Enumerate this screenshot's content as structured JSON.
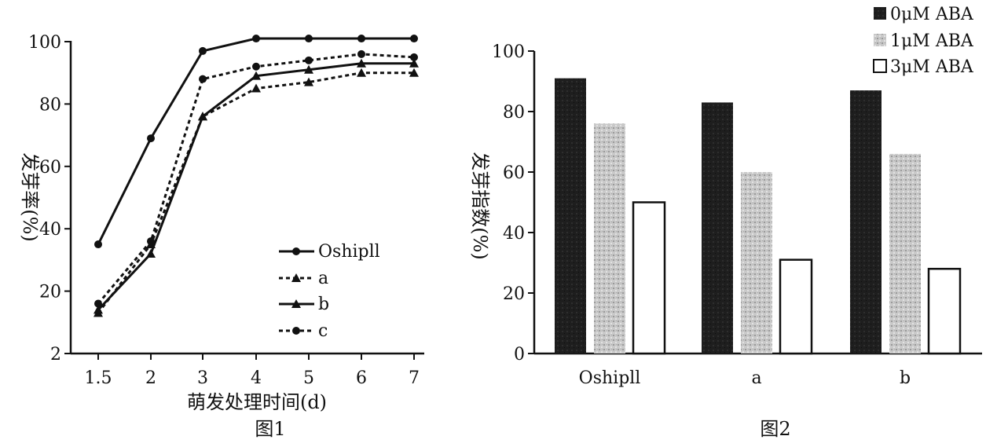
{
  "chart_data": [
    {
      "type": "line",
      "caption": "图1",
      "xlabel": "萌发处理时间(d)",
      "ylabel": "发芽率(%)",
      "categories": [
        "1.5",
        "2",
        "3",
        "4",
        "5",
        "6",
        "7"
      ],
      "y_ticks": [
        "2",
        "20",
        "40",
        "60",
        "80",
        "100"
      ],
      "ylim": [
        0,
        100
      ],
      "series": [
        {
          "name": "Oshipll",
          "marker": "circle",
          "dash": "solid",
          "values": [
            35,
            69,
            97,
            101,
            101,
            101,
            101
          ]
        },
        {
          "name": "a",
          "marker": "triangle",
          "dash": "dotted",
          "values": [
            13,
            35,
            76,
            85,
            87,
            90,
            90
          ]
        },
        {
          "name": "b",
          "marker": "triangle",
          "dash": "solid",
          "values": [
            14,
            32,
            76,
            89,
            91,
            93,
            93
          ]
        },
        {
          "name": "c",
          "marker": "circle",
          "dash": "dotted",
          "values": [
            16,
            36,
            88,
            92,
            94,
            96,
            95
          ]
        }
      ],
      "legend_position": "lower-right"
    },
    {
      "type": "bar",
      "caption": "图2",
      "ylabel": "发芽指数(%)",
      "categories": [
        "Oshipll",
        "a",
        "b"
      ],
      "y_ticks": [
        "0",
        "20",
        "40",
        "60",
        "80",
        "100"
      ],
      "ylim": [
        0,
        100
      ],
      "series": [
        {
          "name": "0μM ABA",
          "color": "#1c1c1c",
          "values": [
            91,
            83,
            87
          ]
        },
        {
          "name": "1μM ABA",
          "color": "#c4c4c4",
          "values": [
            76,
            60,
            66
          ]
        },
        {
          "name": "3μM ABA",
          "color": "#ffffff",
          "values": [
            50,
            31,
            28
          ]
        }
      ],
      "legend_position": "top-right"
    }
  ]
}
